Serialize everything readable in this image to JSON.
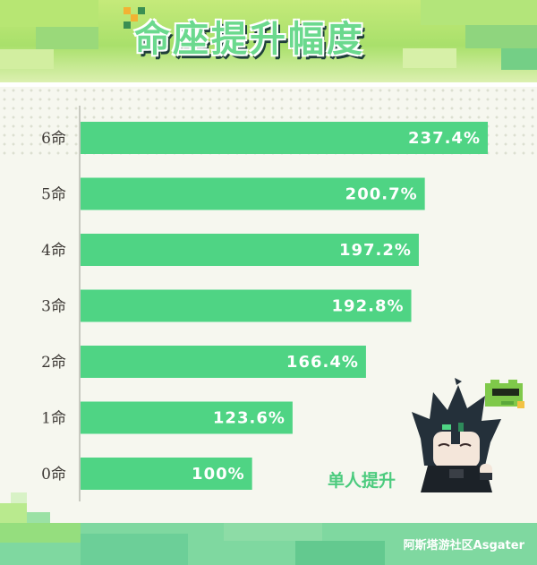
{
  "header": {
    "title": "命座提升幅度"
  },
  "colors": {
    "bar": "#4fd484",
    "bar_label": "#ffffff",
    "axis": "#a9aba0",
    "tick": "#3e3a36",
    "accent": "#4ccb7e"
  },
  "chart_data": {
    "type": "bar",
    "orientation": "horizontal",
    "categories": [
      "6命",
      "5命",
      "4命",
      "3命",
      "2命",
      "1命",
      "0命"
    ],
    "values": [
      237.4,
      200.7,
      197.2,
      192.8,
      166.4,
      123.6,
      100
    ],
    "data_labels": [
      "237.4%",
      "200.7%",
      "197.2%",
      "192.8%",
      "166.4%",
      "123.6%",
      "100%"
    ],
    "xlim": [
      0,
      237.4
    ],
    "annotation": "单人提升",
    "grid": false
  },
  "footer": {
    "source": "阿斯塔游社区Asgater"
  },
  "mascot": {
    "icon": "chibi-character-with-green-frog-icon"
  }
}
